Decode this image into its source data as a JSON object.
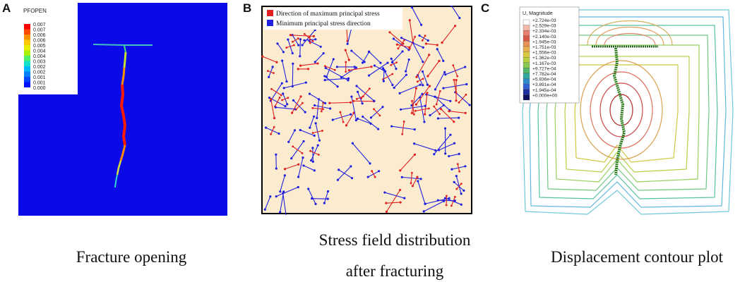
{
  "panels": [
    {
      "letter": "A",
      "caption": "Fracture opening"
    },
    {
      "letter": "B",
      "caption_line1": "Stress field distribution",
      "caption_line2": "after fracturing"
    },
    {
      "letter": "C",
      "caption": "Displacement contour plot"
    }
  ],
  "panel_a": {
    "legend_title": "PFOPEN",
    "legend_labels": [
      "0.007",
      "0.007",
      "0.006",
      "0.006",
      "0.005",
      "0.004",
      "0.004",
      "0.003",
      "0.002",
      "0.002",
      "0.001",
      "0.001",
      "0.000"
    ],
    "legend_colors": [
      "#ff0000",
      "#ff4a00",
      "#ff9000",
      "#ffc800",
      "#e8ee00",
      "#a8f000",
      "#4cf06a",
      "#12e0c8",
      "#00b8ff",
      "#0080ff",
      "#0048ff",
      "#0012ff"
    ],
    "background_color": "#0a0ae6"
  },
  "panel_b": {
    "legend": [
      {
        "label": "Direction of maximum principal stress",
        "color": "#e02020"
      },
      {
        "label": "Minimum principal stress direction",
        "color": "#2020e0"
      }
    ],
    "background_color": "#fbecd0"
  },
  "panel_c": {
    "legend_title": "U, Magnitude",
    "legend_labels": [
      "+2.724e-03",
      "+2.529e-03",
      "+2.334e-03",
      "+2.140e-03",
      "+1.945e-03",
      "+1.751e-03",
      "+1.556e-03",
      "+1.362e-03",
      "+1.167e-03",
      "+9.727e-04",
      "+7.782e-04",
      "+5.836e-04",
      "+3.891e-04",
      "+1.945e-04",
      "+0.000e+00"
    ],
    "legend_colors": [
      "#ffffff",
      "#f3b8a8",
      "#e88070",
      "#d85848",
      "#e89058",
      "#e8b050",
      "#d8c840",
      "#b8d040",
      "#88c850",
      "#50b868",
      "#30a8a0",
      "#3088c8",
      "#3060d0",
      "#2030a0",
      "#101060"
    ]
  }
}
